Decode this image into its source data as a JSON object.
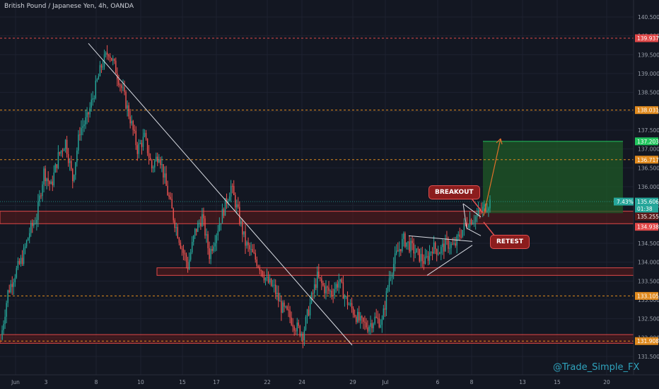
{
  "header": {
    "title": "British Pound / Japanese Yen, 4h, OANDA"
  },
  "watermark": "@Trade_Simple_FX",
  "annotations": {
    "breakout": "BREAKOUT",
    "retest": "RETEST"
  },
  "colors": {
    "background": "#131722",
    "bull": "#26a69a",
    "bear": "#ef5350",
    "zone_fill": "#5c1a1a",
    "zone_border": "#e04848",
    "level_line": "#e08a1e",
    "target_fill": "#1f5a27",
    "target_line": "#22c55e",
    "arrow": "#e0702a"
  },
  "price_axis": {
    "ticks": [
      "140.500",
      "140.000",
      "139.500",
      "139.000",
      "138.500",
      "138.000",
      "137.500",
      "137.000",
      "136.500",
      "136.000",
      "135.500",
      "134.500",
      "134.000",
      "133.500",
      "133.000",
      "132.500",
      "132.000",
      "131.500"
    ],
    "labels": [
      {
        "value": "139.937",
        "color": "#e04848"
      },
      {
        "value": "138.031",
        "color": "#e08a1e"
      },
      {
        "value": "137.203",
        "color": "#22c55e"
      },
      {
        "value": "136.717",
        "color": "#e08a1e"
      },
      {
        "value": "135.606",
        "color": "#26a69a"
      },
      {
        "value": "01:38",
        "color": "#26a69a"
      },
      {
        "value": "135.255",
        "color": "#5c1a1a"
      },
      {
        "value": "134.938",
        "color": "#e04848"
      },
      {
        "value": "133.105",
        "color": "#e08a1e"
      },
      {
        "value": "131.908",
        "color": "#e08a1e"
      }
    ],
    "position_label": "7.43%"
  },
  "time_axis": {
    "ticks": [
      "Jun",
      "3",
      "8",
      "10",
      "15",
      "17",
      "22",
      "24",
      "29",
      "Jul",
      "6",
      "8",
      "13",
      "15",
      "20"
    ]
  },
  "chart_data": {
    "type": "candlestick",
    "title": "British Pound / Japanese Yen, 4h, OANDA",
    "ylim": [
      131.2,
      140.8
    ],
    "horizontal_levels": [
      139.937,
      138.031,
      136.717,
      133.105,
      131.908
    ],
    "zones": [
      {
        "from": 135.02,
        "to": 135.35
      },
      {
        "from": 133.65,
        "to": 133.85
      },
      {
        "from": 131.85,
        "to": 132.08
      }
    ],
    "last_price": 135.606,
    "target_price": 137.203,
    "trendline": {
      "from": {
        "date": "Jun 8",
        "price": 139.8
      },
      "to": {
        "date": "Jun 29",
        "price": 131.8
      }
    },
    "path": [
      131.95,
      133.2,
      133.7,
      134.1,
      134.8,
      135.2,
      136.4,
      136.0,
      136.8,
      137.2,
      136.2,
      137.5,
      137.8,
      138.5,
      139.2,
      139.6,
      139.1,
      138.5,
      137.8,
      137.0,
      137.3,
      136.5,
      136.9,
      136.0,
      135.2,
      134.5,
      133.9,
      134.8,
      135.2,
      134.2,
      134.8,
      135.4,
      136.0,
      135.3,
      134.5,
      134.2,
      133.9,
      133.5,
      133.3,
      132.8,
      132.6,
      132.3,
      132.1,
      132.9,
      133.6,
      133.3,
      133.2,
      133.5,
      133.0,
      132.7,
      132.4,
      132.3,
      132.5,
      132.4,
      133.6,
      134.2,
      134.6,
      134.4,
      134.2,
      134.0,
      134.4,
      134.3,
      134.5,
      134.4,
      134.8,
      135.1,
      135.2,
      135.4,
      135.606
    ]
  }
}
